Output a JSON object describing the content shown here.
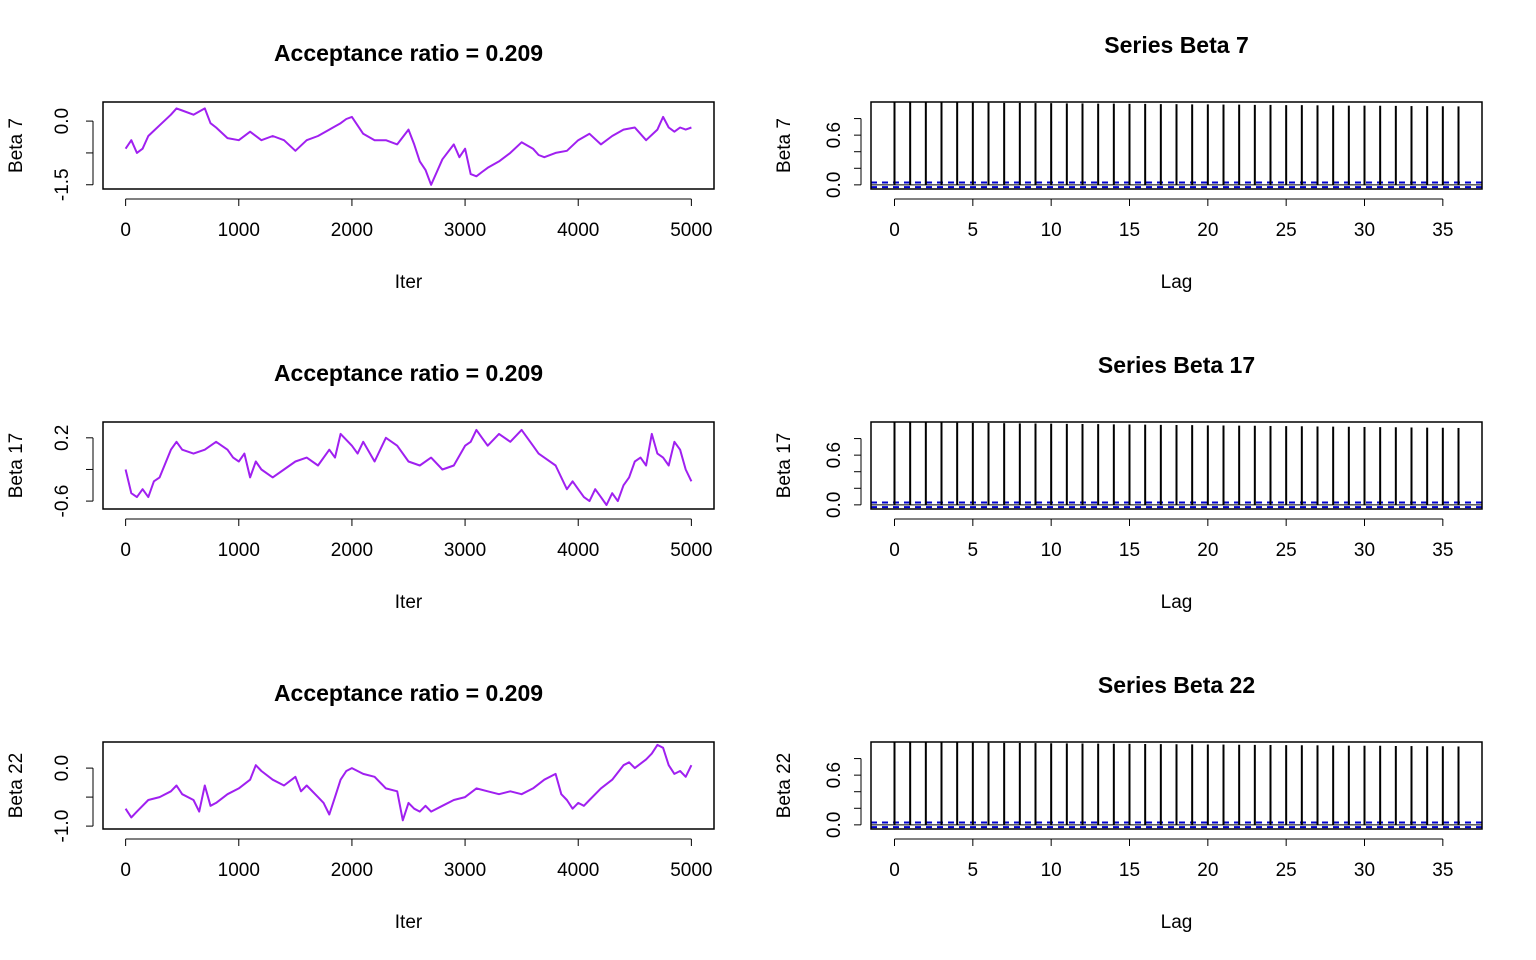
{
  "colors": {
    "trace": "#a020f0",
    "acf": "#000000",
    "ci": "#0000cd",
    "axis": "#000000",
    "background": "#ffffff"
  },
  "chart_data": [
    {
      "type": "line",
      "title": "Acceptance ratio = 0.209",
      "xlabel": "Iter",
      "ylabel": "Beta 7",
      "xlim": [
        -200,
        5200
      ],
      "ylim": [
        -1.6,
        0.45
      ],
      "x_ticks": [
        0,
        1000,
        2000,
        3000,
        4000,
        5000
      ],
      "x_tick_labels": [
        "0",
        "1000",
        "2000",
        "3000",
        "4000",
        "5000"
      ],
      "y_ticks": [
        -1.5,
        -0.75,
        0.0
      ],
      "y_tick_labels": [
        "-1.5",
        "",
        "0.0"
      ],
      "x": [
        0,
        50,
        100,
        150,
        200,
        300,
        400,
        450,
        500,
        600,
        700,
        750,
        800,
        900,
        1000,
        1100,
        1200,
        1300,
        1400,
        1500,
        1600,
        1700,
        1800,
        1900,
        1950,
        2000,
        2100,
        2200,
        2300,
        2400,
        2500,
        2550,
        2600,
        2650,
        2700,
        2750,
        2800,
        2900,
        2950,
        3000,
        3050,
        3100,
        3150,
        3200,
        3300,
        3400,
        3500,
        3600,
        3650,
        3700,
        3800,
        3900,
        4000,
        4100,
        4200,
        4300,
        4400,
        4500,
        4600,
        4700,
        4750,
        4800,
        4850,
        4900,
        4950,
        5000
      ],
      "values": [
        -0.65,
        -0.45,
        -0.75,
        -0.65,
        -0.35,
        -0.1,
        0.15,
        0.3,
        0.25,
        0.15,
        0.3,
        -0.05,
        -0.15,
        -0.4,
        -0.45,
        -0.25,
        -0.45,
        -0.35,
        -0.45,
        -0.7,
        -0.45,
        -0.35,
        -0.2,
        -0.05,
        0.05,
        0.1,
        -0.3,
        -0.45,
        -0.45,
        -0.55,
        -0.2,
        -0.55,
        -0.95,
        -1.15,
        -1.5,
        -1.2,
        -0.9,
        -0.55,
        -0.85,
        -0.65,
        -1.25,
        -1.3,
        -1.2,
        -1.1,
        -0.95,
        -0.75,
        -0.5,
        -0.65,
        -0.8,
        -0.85,
        -0.75,
        -0.7,
        -0.45,
        -0.3,
        -0.55,
        -0.35,
        -0.2,
        -0.15,
        -0.45,
        -0.2,
        0.1,
        -0.15,
        -0.25,
        -0.15,
        -0.2,
        -0.15
      ]
    },
    {
      "type": "bar",
      "title": "Series Beta 7",
      "xlabel": "Lag",
      "ylabel": "Beta 7",
      "xlim": [
        -1.5,
        37.5
      ],
      "ylim": [
        -0.05,
        1.0
      ],
      "x_ticks": [
        0,
        5,
        10,
        15,
        20,
        25,
        30,
        35
      ],
      "x_tick_labels": [
        "0",
        "5",
        "10",
        "15",
        "20",
        "25",
        "30",
        "35"
      ],
      "y_ticks": [
        0.0,
        0.2,
        0.4,
        0.6,
        0.8
      ],
      "y_tick_labels": [
        "0.0",
        "",
        "",
        "0.6",
        ""
      ],
      "ci": 0.028,
      "lags": [
        0,
        1,
        2,
        3,
        4,
        5,
        6,
        7,
        8,
        9,
        10,
        11,
        12,
        13,
        14,
        15,
        16,
        17,
        18,
        19,
        20,
        21,
        22,
        23,
        24,
        25,
        26,
        27,
        28,
        29,
        30,
        31,
        32,
        33,
        34,
        35,
        36
      ],
      "values": [
        1.0,
        0.999,
        0.998,
        0.996,
        0.995,
        0.993,
        0.992,
        0.99,
        0.989,
        0.987,
        0.986,
        0.984,
        0.983,
        0.981,
        0.98,
        0.978,
        0.977,
        0.975,
        0.974,
        0.972,
        0.971,
        0.969,
        0.968,
        0.966,
        0.965,
        0.963,
        0.962,
        0.96,
        0.959,
        0.957,
        0.956,
        0.954,
        0.953,
        0.951,
        0.95,
        0.948,
        0.947
      ]
    },
    {
      "type": "line",
      "title": "Acceptance ratio = 0.209",
      "xlabel": "Iter",
      "ylabel": "Beta 17",
      "xlim": [
        -200,
        5200
      ],
      "ylim": [
        -0.7,
        0.4
      ],
      "x_ticks": [
        0,
        1000,
        2000,
        3000,
        4000,
        5000
      ],
      "x_tick_labels": [
        "0",
        "1000",
        "2000",
        "3000",
        "4000",
        "5000"
      ],
      "y_ticks": [
        -0.6,
        -0.2,
        0.2
      ],
      "y_tick_labels": [
        "-0.6",
        "",
        "0.2"
      ],
      "x": [
        0,
        50,
        100,
        150,
        200,
        250,
        300,
        400,
        450,
        500,
        600,
        700,
        800,
        900,
        950,
        1000,
        1050,
        1100,
        1150,
        1200,
        1300,
        1400,
        1500,
        1600,
        1700,
        1800,
        1850,
        1900,
        2000,
        2050,
        2100,
        2200,
        2300,
        2400,
        2500,
        2600,
        2700,
        2800,
        2900,
        3000,
        3050,
        3100,
        3150,
        3200,
        3300,
        3400,
        3500,
        3600,
        3650,
        3700,
        3800,
        3900,
        3950,
        4000,
        4050,
        4100,
        4150,
        4200,
        4250,
        4300,
        4350,
        4400,
        4450,
        4500,
        4550,
        4600,
        4650,
        4700,
        4750,
        4800,
        4850,
        4900,
        4950,
        5000
      ],
      "values": [
        -0.2,
        -0.5,
        -0.55,
        -0.45,
        -0.55,
        -0.35,
        -0.3,
        0.05,
        0.15,
        0.05,
        0.0,
        0.05,
        0.15,
        0.05,
        -0.05,
        -0.1,
        0.0,
        -0.3,
        -0.1,
        -0.2,
        -0.3,
        -0.2,
        -0.1,
        -0.05,
        -0.15,
        0.05,
        -0.05,
        0.25,
        0.1,
        0.0,
        0.15,
        -0.1,
        0.2,
        0.1,
        -0.1,
        -0.15,
        -0.05,
        -0.2,
        -0.15,
        0.1,
        0.15,
        0.3,
        0.2,
        0.1,
        0.25,
        0.15,
        0.3,
        0.1,
        0.0,
        -0.05,
        -0.15,
        -0.45,
        -0.35,
        -0.45,
        -0.55,
        -0.6,
        -0.45,
        -0.55,
        -0.65,
        -0.5,
        -0.6,
        -0.4,
        -0.3,
        -0.1,
        -0.05,
        -0.15,
        0.25,
        0.0,
        -0.05,
        -0.15,
        0.15,
        0.05,
        -0.2,
        -0.35
      ]
    },
    {
      "type": "bar",
      "title": "Series Beta 17",
      "xlabel": "Lag",
      "ylabel": "Beta 17",
      "xlim": [
        -1.5,
        37.5
      ],
      "ylim": [
        -0.05,
        1.0
      ],
      "x_ticks": [
        0,
        5,
        10,
        15,
        20,
        25,
        30,
        35
      ],
      "x_tick_labels": [
        "0",
        "5",
        "10",
        "15",
        "20",
        "25",
        "30",
        "35"
      ],
      "y_ticks": [
        0.0,
        0.2,
        0.4,
        0.6,
        0.8
      ],
      "y_tick_labels": [
        "0.0",
        "",
        "",
        "0.6",
        ""
      ],
      "ci": 0.028,
      "lags": [
        0,
        1,
        2,
        3,
        4,
        5,
        6,
        7,
        8,
        9,
        10,
        11,
        12,
        13,
        14,
        15,
        16,
        17,
        18,
        19,
        20,
        21,
        22,
        23,
        24,
        25,
        26,
        27,
        28,
        29,
        30,
        31,
        32,
        33,
        34,
        35,
        36
      ],
      "values": [
        1.0,
        0.998,
        0.996,
        0.994,
        0.992,
        0.99,
        0.988,
        0.986,
        0.984,
        0.982,
        0.98,
        0.978,
        0.976,
        0.974,
        0.972,
        0.97,
        0.968,
        0.966,
        0.964,
        0.962,
        0.96,
        0.958,
        0.956,
        0.954,
        0.952,
        0.95,
        0.948,
        0.946,
        0.944,
        0.942,
        0.94,
        0.938,
        0.936,
        0.934,
        0.932,
        0.93,
        0.928
      ]
    },
    {
      "type": "line",
      "title": "Acceptance ratio = 0.209",
      "xlabel": "Iter",
      "ylabel": "Beta 22",
      "xlim": [
        -200,
        5200
      ],
      "ylim": [
        -1.05,
        0.45
      ],
      "x_ticks": [
        0,
        1000,
        2000,
        3000,
        4000,
        5000
      ],
      "x_tick_labels": [
        "0",
        "1000",
        "2000",
        "3000",
        "4000",
        "5000"
      ],
      "y_ticks": [
        -1.0,
        -0.5,
        0.0
      ],
      "y_tick_labels": [
        "-1.0",
        "",
        "0.0"
      ],
      "x": [
        0,
        50,
        100,
        200,
        300,
        400,
        450,
        500,
        600,
        650,
        700,
        750,
        800,
        900,
        1000,
        1100,
        1150,
        1200,
        1300,
        1400,
        1500,
        1550,
        1600,
        1700,
        1750,
        1800,
        1850,
        1900,
        1950,
        2000,
        2100,
        2200,
        2300,
        2400,
        2450,
        2500,
        2550,
        2600,
        2650,
        2700,
        2800,
        2900,
        3000,
        3100,
        3200,
        3300,
        3400,
        3500,
        3600,
        3700,
        3800,
        3850,
        3900,
        3950,
        4000,
        4050,
        4100,
        4200,
        4300,
        4400,
        4450,
        4500,
        4600,
        4650,
        4700,
        4750,
        4800,
        4850,
        4900,
        4950,
        5000
      ],
      "values": [
        -0.7,
        -0.85,
        -0.75,
        -0.55,
        -0.5,
        -0.4,
        -0.3,
        -0.45,
        -0.55,
        -0.75,
        -0.3,
        -0.65,
        -0.6,
        -0.45,
        -0.35,
        -0.2,
        0.05,
        -0.05,
        -0.2,
        -0.3,
        -0.15,
        -0.4,
        -0.3,
        -0.5,
        -0.6,
        -0.8,
        -0.5,
        -0.2,
        -0.05,
        0.0,
        -0.1,
        -0.15,
        -0.35,
        -0.4,
        -0.9,
        -0.6,
        -0.7,
        -0.75,
        -0.65,
        -0.75,
        -0.65,
        -0.55,
        -0.5,
        -0.35,
        -0.4,
        -0.45,
        -0.4,
        -0.45,
        -0.35,
        -0.2,
        -0.1,
        -0.45,
        -0.55,
        -0.7,
        -0.6,
        -0.65,
        -0.55,
        -0.35,
        -0.2,
        0.05,
        0.1,
        0.0,
        0.15,
        0.25,
        0.4,
        0.35,
        0.05,
        -0.1,
        -0.05,
        -0.15,
        0.05
      ]
    },
    {
      "type": "bar",
      "title": "Series Beta 22",
      "xlabel": "Lag",
      "ylabel": "Beta 22",
      "xlim": [
        -1.5,
        37.5
      ],
      "ylim": [
        -0.05,
        1.0
      ],
      "x_ticks": [
        0,
        5,
        10,
        15,
        20,
        25,
        30,
        35
      ],
      "x_tick_labels": [
        "0",
        "5",
        "10",
        "15",
        "20",
        "25",
        "30",
        "35"
      ],
      "y_ticks": [
        0.0,
        0.2,
        0.4,
        0.6,
        0.8
      ],
      "y_tick_labels": [
        "0.0",
        "",
        "",
        "0.6",
        ""
      ],
      "ci": 0.028,
      "lags": [
        0,
        1,
        2,
        3,
        4,
        5,
        6,
        7,
        8,
        9,
        10,
        11,
        12,
        13,
        14,
        15,
        16,
        17,
        18,
        19,
        20,
        21,
        22,
        23,
        24,
        25,
        26,
        27,
        28,
        29,
        30,
        31,
        32,
        33,
        34,
        35,
        36
      ],
      "values": [
        1.0,
        0.999,
        0.997,
        0.996,
        0.994,
        0.993,
        0.991,
        0.99,
        0.988,
        0.987,
        0.985,
        0.984,
        0.982,
        0.981,
        0.979,
        0.978,
        0.976,
        0.975,
        0.973,
        0.972,
        0.97,
        0.969,
        0.967,
        0.966,
        0.964,
        0.963,
        0.961,
        0.96,
        0.958,
        0.957,
        0.955,
        0.954,
        0.952,
        0.951,
        0.949,
        0.948,
        0.946
      ]
    }
  ]
}
